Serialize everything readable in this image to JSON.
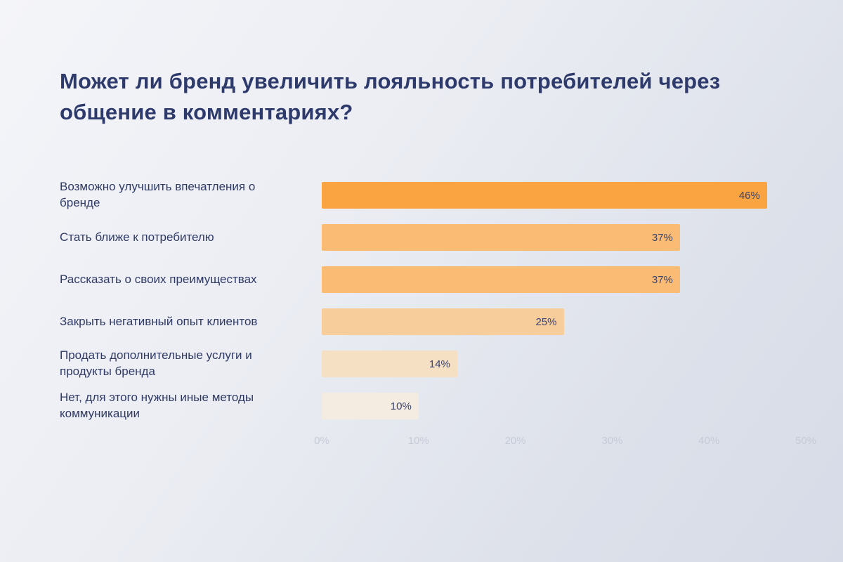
{
  "page": {
    "background_from": "#F4F5F9",
    "background_to": "#D7DBE7"
  },
  "title": "Может ли бренд увеличить лояльность потребителей через общение в комментариях?",
  "chart_data": {
    "type": "bar",
    "orientation": "horizontal",
    "title": "Может ли бренд увеличить лояльность потребителей через общение в комментариях?",
    "categories": [
      "Возможно улучшить впечатления о бренде",
      "Стать ближе к потребителю",
      "Рассказать о своих преимуществах",
      "Закрыть негативный опыт клиентов",
      "Продать дополнительные услуги и продукты бренда",
      "Нет, для этого нужны иные методы коммуникации"
    ],
    "values": [
      46,
      37,
      37,
      25,
      14,
      10
    ],
    "value_labels": [
      "46%",
      "37%",
      "37%",
      "25%",
      "14%",
      "10%"
    ],
    "bar_colors": [
      "#F9A440",
      "#FABC74",
      "#FABC74",
      "#F8CD9C",
      "#F5E0C3",
      "#F4EBE1"
    ],
    "xlabel": "",
    "ylabel": "",
    "xlim": [
      0,
      50
    ],
    "x_ticks": [
      "0%",
      "10%",
      "20%",
      "30%",
      "40%",
      "50%"
    ],
    "grid": false,
    "legend": false,
    "title_color": "#2D3A6B",
    "label_color": "#2F3A64",
    "value_color": "#3A446F",
    "tick_color": "#C5CAD6"
  }
}
